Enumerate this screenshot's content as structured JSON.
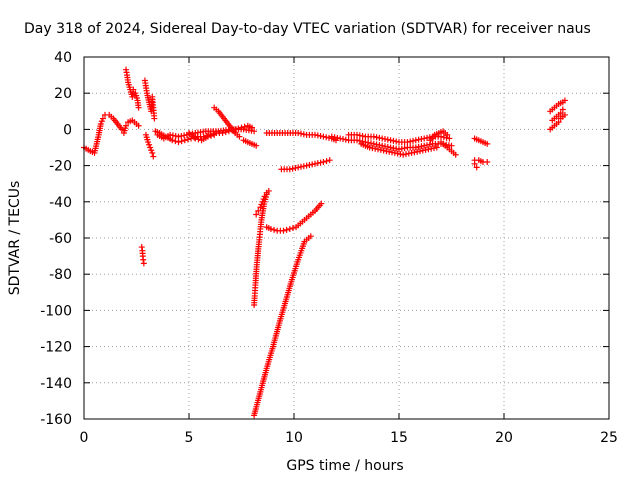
{
  "chart_data": {
    "type": "scatter",
    "title": "Day 318 of 2024, Sidereal Day-to-day VTEC variation (SDTVAR) for receiver naus",
    "xlabel": "GPS time / hours",
    "ylabel": "SDTVAR / TECUs",
    "xlim": [
      0,
      25
    ],
    "ylim": [
      -160,
      40
    ],
    "xticks": [
      0,
      5,
      10,
      15,
      20,
      25
    ],
    "yticks": [
      40,
      20,
      0,
      -20,
      -40,
      -60,
      -80,
      -100,
      -120,
      -140,
      -160
    ],
    "grid": true,
    "marker": "+",
    "marker_color": "#ff0000",
    "series": [
      {
        "segments": [
          [
            [
              0.0,
              -10
            ],
            [
              0.3,
              -12
            ],
            [
              0.5,
              -13
            ],
            [
              0.6,
              -8
            ],
            [
              0.7,
              -3
            ],
            [
              0.8,
              3
            ],
            [
              0.9,
              6
            ],
            [
              1.0,
              8
            ],
            [
              1.2,
              8
            ],
            [
              1.4,
              6
            ],
            [
              1.6,
              3
            ],
            [
              1.8,
              0
            ],
            [
              1.9,
              -2
            ],
            [
              2.0,
              2
            ],
            [
              2.1,
              4
            ],
            [
              2.3,
              5
            ],
            [
              2.5,
              3
            ],
            [
              2.6,
              2
            ]
          ],
          [
            [
              2.0,
              33
            ],
            [
              2.05,
              30
            ],
            [
              2.1,
              26
            ],
            [
              2.2,
              22
            ],
            [
              2.3,
              18
            ],
            [
              2.35,
              22
            ],
            [
              2.45,
              20
            ],
            [
              2.55,
              16
            ],
            [
              2.6,
              12
            ]
          ],
          [
            [
              2.75,
              -65
            ],
            [
              2.78,
              -67
            ],
            [
              2.8,
              -70
            ],
            [
              2.82,
              -72
            ],
            [
              2.85,
              -74
            ]
          ],
          [
            [
              2.9,
              27
            ],
            [
              3.0,
              20
            ],
            [
              3.1,
              15
            ],
            [
              3.2,
              10
            ],
            [
              3.25,
              18
            ],
            [
              3.3,
              12
            ],
            [
              3.35,
              6
            ]
          ],
          [
            [
              2.95,
              -3
            ],
            [
              3.05,
              -7
            ],
            [
              3.15,
              -10
            ],
            [
              3.25,
              -13
            ],
            [
              3.3,
              -15
            ]
          ],
          [
            [
              3.4,
              -1
            ],
            [
              3.6,
              -2
            ],
            [
              3.9,
              -4
            ],
            [
              4.2,
              -6
            ],
            [
              4.5,
              -7
            ],
            [
              4.8,
              -6
            ],
            [
              5.1,
              -5
            ],
            [
              5.4,
              -4
            ],
            [
              5.7,
              -4
            ],
            [
              6.0,
              -3
            ],
            [
              6.3,
              -2
            ],
            [
              6.6,
              -2
            ],
            [
              6.9,
              -1
            ],
            [
              7.2,
              0
            ],
            [
              7.5,
              1
            ],
            [
              7.8,
              2
            ],
            [
              8.0,
              1
            ]
          ],
          [
            [
              3.5,
              -3
            ],
            [
              3.8,
              -5
            ],
            [
              4.1,
              -3
            ],
            [
              4.5,
              -4
            ],
            [
              4.9,
              -3
            ],
            [
              5.3,
              -2
            ],
            [
              5.8,
              -1
            ],
            [
              6.4,
              -1
            ],
            [
              7.0,
              0
            ],
            [
              7.6,
              0
            ],
            [
              8.1,
              -1
            ]
          ],
          [
            [
              5.0,
              -2
            ],
            [
              5.3,
              -5
            ],
            [
              5.6,
              -6
            ],
            [
              5.9,
              -4
            ],
            [
              6.2,
              -3
            ]
          ],
          [
            [
              6.2,
              12
            ],
            [
              6.4,
              10
            ],
            [
              6.6,
              7
            ],
            [
              6.8,
              4
            ],
            [
              7.0,
              1
            ],
            [
              7.2,
              -2
            ],
            [
              7.4,
              -4
            ]
          ],
          [
            [
              7.6,
              -6
            ],
            [
              7.8,
              -7
            ],
            [
              8.0,
              -8
            ],
            [
              8.2,
              -9
            ]
          ],
          [
            [
              8.1,
              -97
            ],
            [
              8.13,
              -92
            ],
            [
              8.16,
              -86
            ],
            [
              8.19,
              -81
            ],
            [
              8.22,
              -76
            ],
            [
              8.26,
              -71
            ],
            [
              8.3,
              -66
            ],
            [
              8.35,
              -61
            ],
            [
              8.4,
              -55
            ],
            [
              8.45,
              -50
            ],
            [
              8.52,
              -45
            ],
            [
              8.6,
              -40
            ],
            [
              8.7,
              -36
            ],
            [
              8.8,
              -34
            ]
          ],
          [
            [
              8.2,
              -47
            ],
            [
              8.3,
              -45
            ],
            [
              8.4,
              -43
            ],
            [
              8.5,
              -40
            ],
            [
              8.6,
              -37
            ],
            [
              8.7,
              -35
            ]
          ],
          [
            [
              8.7,
              -54
            ],
            [
              8.9,
              -55
            ],
            [
              9.2,
              -56
            ],
            [
              9.5,
              -56
            ],
            [
              9.8,
              -55
            ],
            [
              10.1,
              -54
            ],
            [
              10.4,
              -51
            ],
            [
              10.7,
              -48
            ],
            [
              11.0,
              -45
            ],
            [
              11.3,
              -41
            ]
          ],
          [
            [
              8.1,
              -158
            ],
            [
              8.4,
              -145
            ],
            [
              8.7,
              -132
            ],
            [
              9.0,
              -120
            ],
            [
              9.3,
              -107
            ],
            [
              9.6,
              -95
            ],
            [
              9.9,
              -83
            ],
            [
              10.2,
              -72
            ],
            [
              10.5,
              -62
            ],
            [
              10.8,
              -59
            ]
          ],
          [
            [
              8.7,
              -2
            ],
            [
              9.2,
              -2
            ],
            [
              9.7,
              -2
            ],
            [
              10.2,
              -2
            ],
            [
              10.6,
              -3
            ],
            [
              11.0,
              -3
            ],
            [
              11.4,
              -4
            ],
            [
              11.8,
              -5
            ],
            [
              12.0,
              -6
            ]
          ],
          [
            [
              9.4,
              -22
            ],
            [
              9.8,
              -22
            ],
            [
              10.2,
              -21
            ],
            [
              10.6,
              -20
            ],
            [
              11.0,
              -19
            ],
            [
              11.4,
              -18
            ],
            [
              11.7,
              -17
            ]
          ],
          [
            [
              11.8,
              -4
            ],
            [
              12.2,
              -5
            ],
            [
              12.6,
              -6
            ],
            [
              13.0,
              -6
            ],
            [
              13.4,
              -7
            ],
            [
              13.8,
              -8
            ],
            [
              14.2,
              -9
            ],
            [
              14.6,
              -10
            ],
            [
              15.0,
              -11
            ],
            [
              15.4,
              -10
            ],
            [
              15.8,
              -10
            ],
            [
              16.2,
              -9
            ],
            [
              16.6,
              -8
            ],
            [
              17.0,
              -8
            ],
            [
              17.5,
              -9
            ]
          ],
          [
            [
              12.6,
              -3
            ],
            [
              13.0,
              -3
            ],
            [
              13.4,
              -4
            ],
            [
              13.8,
              -4
            ],
            [
              14.2,
              -5
            ],
            [
              14.6,
              -6
            ],
            [
              15.0,
              -7
            ],
            [
              15.4,
              -7
            ],
            [
              15.8,
              -6
            ],
            [
              16.2,
              -5
            ],
            [
              16.6,
              -4
            ],
            [
              17.0,
              -4
            ],
            [
              17.4,
              -5
            ]
          ],
          [
            [
              13.2,
              -8
            ],
            [
              13.6,
              -10
            ],
            [
              14.0,
              -11
            ],
            [
              14.4,
              -12
            ],
            [
              14.8,
              -13
            ],
            [
              15.2,
              -14
            ],
            [
              15.6,
              -13
            ],
            [
              16.0,
              -12
            ],
            [
              16.4,
              -11
            ],
            [
              16.8,
              -10
            ]
          ],
          [
            [
              16.5,
              -6
            ],
            [
              16.7,
              -3
            ],
            [
              16.9,
              -2
            ],
            [
              17.1,
              -1
            ],
            [
              17.3,
              -3
            ]
          ],
          [
            [
              17.0,
              -7
            ],
            [
              17.2,
              -9
            ],
            [
              17.4,
              -11
            ],
            [
              17.6,
              -13
            ],
            [
              17.7,
              -14
            ]
          ],
          [
            [
              18.6,
              -5
            ],
            [
              18.8,
              -6
            ],
            [
              19.0,
              -7
            ],
            [
              19.2,
              -8
            ]
          ],
          [
            [
              18.6,
              -17
            ],
            [
              18.8,
              -17
            ],
            [
              19.0,
              -18
            ],
            [
              19.2,
              -18
            ]
          ],
          [
            [
              18.6,
              -19
            ],
            [
              18.7,
              -21
            ]
          ],
          [
            [
              22.2,
              10
            ],
            [
              22.4,
              12
            ],
            [
              22.6,
              14
            ],
            [
              22.8,
              15
            ],
            [
              22.9,
              16
            ]
          ],
          [
            [
              22.2,
              0
            ],
            [
              22.4,
              2
            ],
            [
              22.6,
              4
            ],
            [
              22.7,
              6
            ],
            [
              22.9,
              8
            ]
          ],
          [
            [
              22.3,
              5
            ],
            [
              22.5,
              7
            ],
            [
              22.7,
              9
            ],
            [
              22.8,
              11
            ]
          ]
        ]
      }
    ]
  }
}
